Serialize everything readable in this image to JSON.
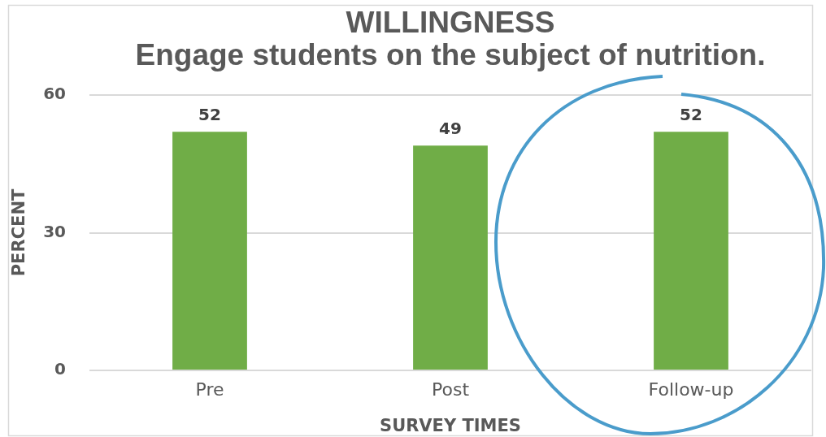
{
  "chart_data": {
    "type": "bar",
    "title": "WILLINGNESS",
    "subtitle": "Engage students on the subject of nutrition.",
    "xlabel": "SURVEY TIMES",
    "ylabel": "PERCENT",
    "categories": [
      "Pre",
      "Post",
      "Follow-up"
    ],
    "values": [
      52,
      49,
      52
    ],
    "color": "#70ad47",
    "ylim": [
      0,
      60
    ],
    "yticks": [
      0,
      30,
      60
    ],
    "grid": "y",
    "data_labels": true
  }
}
